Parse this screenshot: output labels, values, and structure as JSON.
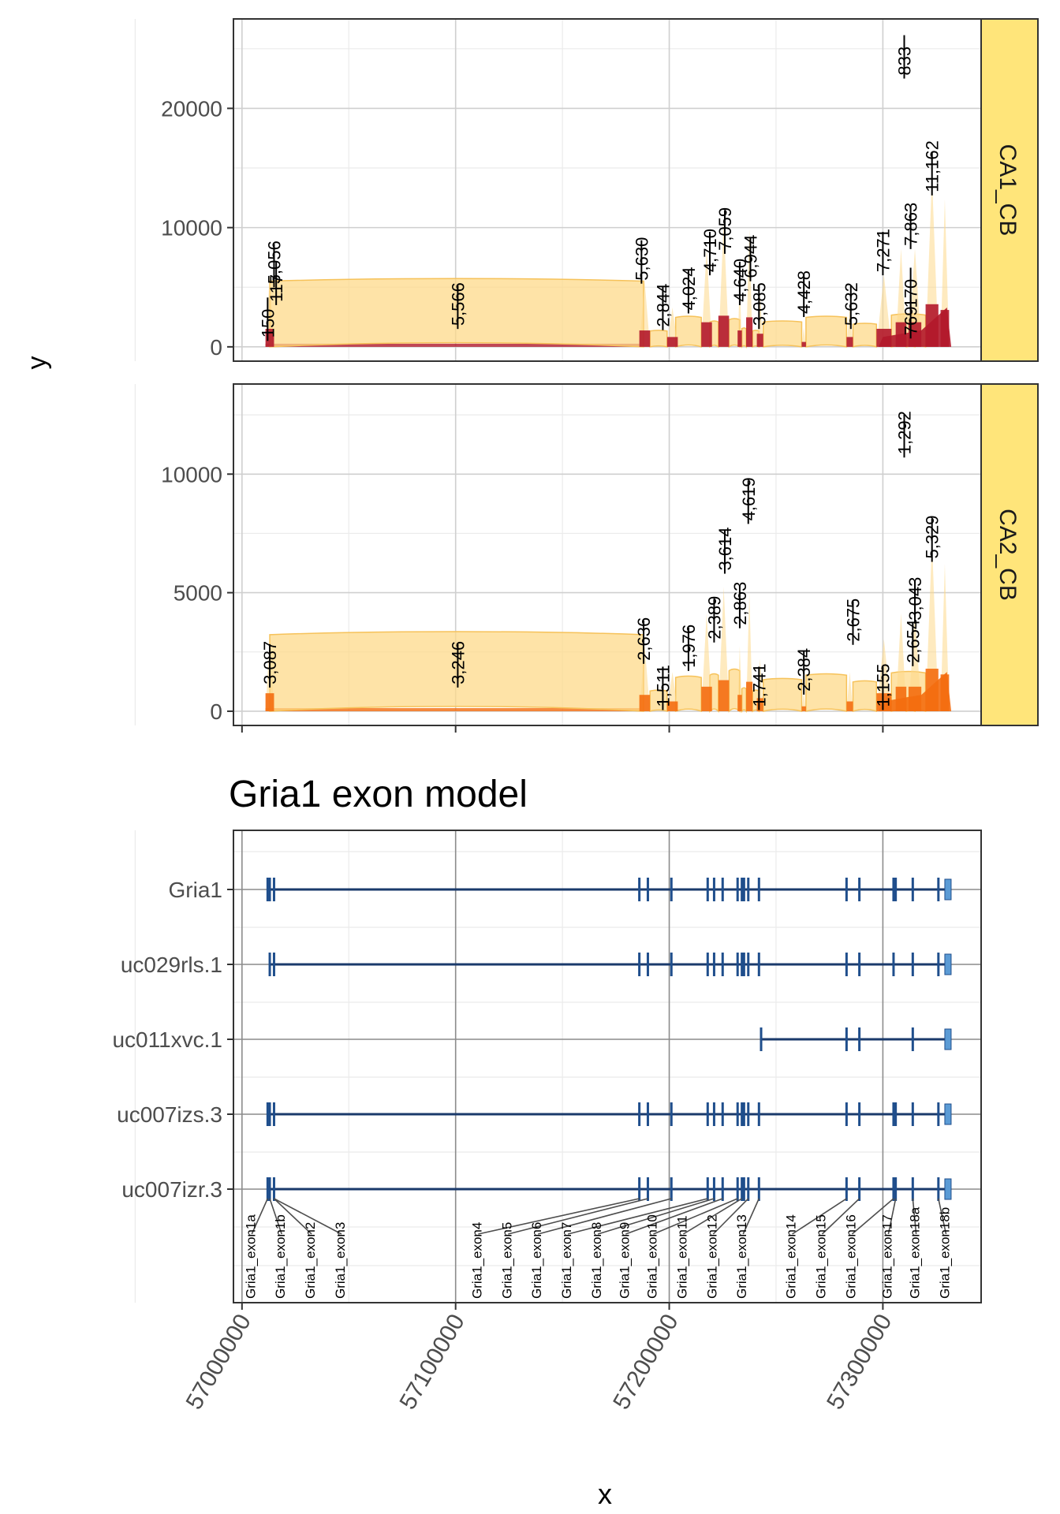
{
  "chart_data": [
    {
      "type": "area",
      "facet": "CA1_CB",
      "xlim": [
        56996000,
        57346000
      ],
      "ylim": [
        -1200,
        27500
      ],
      "y_ticks": [
        0,
        10000,
        20000
      ],
      "grid": true,
      "colors": {
        "coverage": "#b2182b",
        "arc": "#fdd98a",
        "arc_edge": "#f6c25a",
        "strip": "#ffe57a"
      },
      "exon_bounds": [
        [
          57011000,
          57015000
        ],
        [
          57186000,
          57191000
        ],
        [
          57199000,
          57204000
        ],
        [
          57215000,
          57220000
        ],
        [
          57223000,
          57228000
        ],
        [
          57232000,
          57234000
        ],
        [
          57236000,
          57239000
        ],
        [
          57241000,
          57244000
        ],
        [
          57262000,
          57264000
        ],
        [
          57283000,
          57286000
        ],
        [
          57297000,
          57304000
        ],
        [
          57306000,
          57311000
        ],
        [
          57312000,
          57318000
        ],
        [
          57320000,
          57326000
        ],
        [
          57327000,
          57331000
        ]
      ],
      "junctions": [
        {
          "label": "150",
          "x": 57012000,
          "y": 500
        },
        {
          "label": "117",
          "x": 57016000,
          "y": 3500
        },
        {
          "label": "5,056",
          "x": 57015000,
          "y": 5000
        },
        {
          "label": "5,566",
          "x": 57101000,
          "y": 1500
        },
        {
          "label": "5,630",
          "x": 57187000,
          "y": 5300
        },
        {
          "label": "2,844",
          "x": 57197000,
          "y": 1400
        },
        {
          "label": "4,024",
          "x": 57209000,
          "y": 2800
        },
        {
          "label": "4,710",
          "x": 57219000,
          "y": 6000
        },
        {
          "label": "7,059",
          "x": 57226000,
          "y": 7800
        },
        {
          "label": "4,640",
          "x": 57233000,
          "y": 3500
        },
        {
          "label": "6,944",
          "x": 57238000,
          "y": 5500
        },
        {
          "label": "3,085",
          "x": 57242000,
          "y": 1500
        },
        {
          "label": "4,428",
          "x": 57263000,
          "y": 2500
        },
        {
          "label": "5,632",
          "x": 57285000,
          "y": 1500
        },
        {
          "label": "7,271",
          "x": 57300000,
          "y": 6000
        },
        {
          "label": "769",
          "x": 57313000,
          "y": 700
        },
        {
          "label": "170",
          "x": 57313000,
          "y": 3000
        },
        {
          "label": "7,863",
          "x": 57313000,
          "y": 8200
        },
        {
          "label": "833",
          "x": 57310000,
          "y": 22500
        },
        {
          "label": "11,162",
          "x": 57323000,
          "y": 12700
        }
      ],
      "arcs": [
        {
          "x1": 57013000,
          "x2": 57188000,
          "h": 5800
        },
        {
          "x1": 57191000,
          "x2": 57199000,
          "h": 1400
        },
        {
          "x1": 57203000,
          "x2": 57215000,
          "h": 2600
        },
        {
          "x1": 57219000,
          "x2": 57223000,
          "h": 2200
        },
        {
          "x1": 57228000,
          "x2": 57233000,
          "h": 2400
        },
        {
          "x1": 57234000,
          "x2": 57236000,
          "h": 1600
        },
        {
          "x1": 57239000,
          "x2": 57242000,
          "h": 1400
        },
        {
          "x1": 57244000,
          "x2": 57262000,
          "h": 2200
        },
        {
          "x1": 57264000,
          "x2": 57283000,
          "h": 2600
        },
        {
          "x1": 57286000,
          "x2": 57297000,
          "h": 2000
        },
        {
          "x1": 57304000,
          "x2": 57320000,
          "h": 2800
        },
        {
          "x1": 57311000,
          "x2": 57315000,
          "h": 800
        }
      ]
    },
    {
      "type": "area",
      "facet": "CA2_CB",
      "xlim": [
        56996000,
        57346000
      ],
      "ylim": [
        -600,
        13800
      ],
      "y_ticks": [
        0,
        5000,
        10000
      ],
      "grid": true,
      "colors": {
        "coverage": "#f46d0f",
        "arc": "#fdd98a",
        "arc_edge": "#f6c25a",
        "strip": "#ffe57a"
      },
      "exon_bounds": [
        [
          57011000,
          57015000
        ],
        [
          57186000,
          57191000
        ],
        [
          57199000,
          57204000
        ],
        [
          57215000,
          57220000
        ],
        [
          57223000,
          57228000
        ],
        [
          57232000,
          57234000
        ],
        [
          57236000,
          57239000
        ],
        [
          57241000,
          57244000
        ],
        [
          57262000,
          57264000
        ],
        [
          57283000,
          57286000
        ],
        [
          57297000,
          57304000
        ],
        [
          57306000,
          57311000
        ],
        [
          57312000,
          57318000
        ],
        [
          57320000,
          57326000
        ],
        [
          57327000,
          57331000
        ]
      ],
      "junctions": [
        {
          "label": "3,087",
          "x": 57013000,
          "y": 1000
        },
        {
          "label": "3,246",
          "x": 57101000,
          "y": 1000
        },
        {
          "label": "2,636",
          "x": 57188000,
          "y": 2000
        },
        {
          "label": "1,511",
          "x": 57197000,
          "y": 50
        },
        {
          "label": "1,976",
          "x": 57209000,
          "y": 1700
        },
        {
          "label": "2,389",
          "x": 57221000,
          "y": 2900
        },
        {
          "label": "3,614",
          "x": 57226000,
          "y": 5800
        },
        {
          "label": "2,863",
          "x": 57233000,
          "y": 3500
        },
        {
          "label": "4,619",
          "x": 57237000,
          "y": 7900
        },
        {
          "label": "1,741",
          "x": 57242000,
          "y": 50
        },
        {
          "label": "2,384",
          "x": 57263000,
          "y": 700
        },
        {
          "label": "2,675",
          "x": 57286000,
          "y": 2800
        },
        {
          "label": "1,155",
          "x": 57300000,
          "y": 50
        },
        {
          "label": "2,654",
          "x": 57314000,
          "y": 1900
        },
        {
          "label": "3,043",
          "x": 57315000,
          "y": 3700
        },
        {
          "label": "1,292",
          "x": 57310000,
          "y": 10700
        },
        {
          "label": "5,329",
          "x": 57323000,
          "y": 6300
        }
      ],
      "arcs": [
        {
          "x1": 57013000,
          "x2": 57188000,
          "h": 3400
        },
        {
          "x1": 57191000,
          "x2": 57199000,
          "h": 900
        },
        {
          "x1": 57203000,
          "x2": 57215000,
          "h": 1500
        },
        {
          "x1": 57219000,
          "x2": 57223000,
          "h": 1600
        },
        {
          "x1": 57228000,
          "x2": 57233000,
          "h": 1800
        },
        {
          "x1": 57234000,
          "x2": 57236000,
          "h": 1000
        },
        {
          "x1": 57239000,
          "x2": 57242000,
          "h": 900
        },
        {
          "x1": 57244000,
          "x2": 57262000,
          "h": 1400
        },
        {
          "x1": 57264000,
          "x2": 57283000,
          "h": 1600
        },
        {
          "x1": 57286000,
          "x2": 57297000,
          "h": 1300
        },
        {
          "x1": 57304000,
          "x2": 57320000,
          "h": 1700
        },
        {
          "x1": 57311000,
          "x2": 57315000,
          "h": 600
        }
      ]
    },
    {
      "type": "gene_model",
      "title": "Gria1 exon model",
      "xlabel": "x",
      "ylabel": "y",
      "xlim": [
        56996000,
        57346000
      ],
      "x_ticks": [
        57000000,
        57100000,
        57200000,
        57300000
      ],
      "x_tick_labels": [
        "57000000",
        "57100000",
        "57200000",
        "57300000"
      ],
      "grid": true,
      "colors": {
        "exon": "#1f4e8c",
        "utr": "#5b9bd5",
        "line": "#1a3a6b"
      },
      "transcripts": [
        {
          "name": "Gria1",
          "start": 57012000,
          "end": 57332000,
          "exons": [
            57012000,
            57013000,
            57015000,
            57186000,
            57190000,
            57201000,
            57218000,
            57221000,
            57225000,
            57232000,
            57234000,
            57235000,
            57237000,
            57242000,
            57283000,
            57289000,
            57305000,
            57306000,
            57314000,
            57326000
          ],
          "utr_end": true
        },
        {
          "name": "uc029rls.1",
          "start": 57013000,
          "end": 57332000,
          "exons": [
            57013000,
            57015000,
            57186000,
            57190000,
            57201000,
            57218000,
            57221000,
            57225000,
            57232000,
            57234000,
            57235000,
            57237000,
            57242000,
            57283000,
            57289000,
            57305000,
            57314000,
            57326000
          ],
          "utr_end": true
        },
        {
          "name": "uc011xvc.1",
          "start": 57243000,
          "end": 57332000,
          "exons": [
            57243000,
            57283000,
            57289000,
            57314000
          ],
          "utr_end": true
        },
        {
          "name": "uc007izs.3",
          "start": 57012000,
          "end": 57332000,
          "exons": [
            57012000,
            57013000,
            57015000,
            57186000,
            57190000,
            57201000,
            57218000,
            57221000,
            57225000,
            57232000,
            57234000,
            57235000,
            57237000,
            57242000,
            57283000,
            57289000,
            57305000,
            57306000,
            57314000,
            57326000
          ],
          "utr_end": true
        },
        {
          "name": "uc007izr.3",
          "start": 57012000,
          "end": 57332000,
          "exons": [
            57012000,
            57013000,
            57015000,
            57186000,
            57190000,
            57201000,
            57218000,
            57221000,
            57225000,
            57232000,
            57234000,
            57235000,
            57237000,
            57242000,
            57283000,
            57289000,
            57305000,
            57306000,
            57314000,
            57326000
          ],
          "utr_end": true
        }
      ],
      "exon_labels": [
        {
          "label": "Gria1_exon1a",
          "x": 57012000,
          "lx": 57002000
        },
        {
          "label": "Gria1_exon1b",
          "x": 57013000,
          "lx": 57016000
        },
        {
          "label": "Gria1_exon2",
          "x": 57015000,
          "lx": 57030000
        },
        {
          "label": "Gria1_exon3",
          "x": 57015000,
          "lx": 57044000
        },
        {
          "label": "Gria1_exon4",
          "x": 57186000,
          "lx": 57108000
        },
        {
          "label": "Gria1_exon5",
          "x": 57190000,
          "lx": 57122000
        },
        {
          "label": "Gria1_exon6",
          "x": 57201000,
          "lx": 57136000
        },
        {
          "label": "Gria1_exon7",
          "x": 57218000,
          "lx": 57150000
        },
        {
          "label": "Gria1_exon8",
          "x": 57221000,
          "lx": 57164000
        },
        {
          "label": "Gria1_exon9",
          "x": 57225000,
          "lx": 57177000
        },
        {
          "label": "Gria1_exon10",
          "x": 57232000,
          "lx": 57190000
        },
        {
          "label": "Gria1_exon11",
          "x": 57234000,
          "lx": 57204000
        },
        {
          "label": "Gria1_exon12",
          "x": 57237000,
          "lx": 57218000
        },
        {
          "label": "Gria1_exon13",
          "x": 57242000,
          "lx": 57232000
        },
        {
          "label": "Gria1_exon14",
          "x": 57283000,
          "lx": 57255000
        },
        {
          "label": "Gria1_exon15",
          "x": 57289000,
          "lx": 57269000
        },
        {
          "label": "Gria1_exon16",
          "x": 57305000,
          "lx": 57283000
        },
        {
          "label": "Gria1_exon17",
          "x": 57306000,
          "lx": 57300000
        },
        {
          "label": "Gria1_exon18a",
          "x": 57314000,
          "lx": 57313000
        },
        {
          "label": "Gria1_exon18b",
          "x": 57326000,
          "lx": 57327000
        }
      ]
    }
  ]
}
